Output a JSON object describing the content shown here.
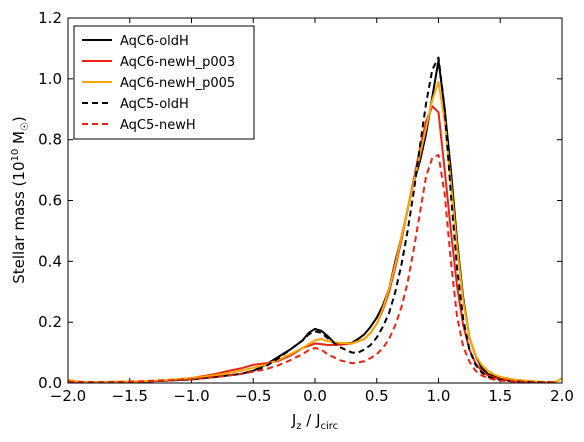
{
  "chart_data": {
    "type": "line",
    "xlabel": {
      "main": "J",
      "sub1": "z",
      "mid": " / J",
      "sub2": "circ"
    },
    "ylabel": {
      "main": "Stellar mass (10",
      "sup": "10",
      "unit": " M",
      "sub": "☉",
      "close": ")"
    },
    "xlim": [
      -2.0,
      2.0
    ],
    "ylim": [
      0.0,
      1.2
    ],
    "xticks": [
      "−2.0",
      "−1.5",
      "−1.0",
      "−0.5",
      "0.0",
      "0.5",
      "1.0",
      "1.5",
      "2.0"
    ],
    "xtick_values": [
      -2.0,
      -1.5,
      -1.0,
      -0.5,
      0.0,
      0.5,
      1.0,
      1.5,
      2.0
    ],
    "yticks": [
      "0.0",
      "0.2",
      "0.4",
      "0.6",
      "0.8",
      "1.0",
      "1.2"
    ],
    "ytick_values": [
      0.0,
      0.2,
      0.4,
      0.6,
      0.8,
      1.0,
      1.2
    ],
    "grid": false,
    "legend_position": "top-left",
    "series": [
      {
        "name": "AqC6-oldH",
        "color": "#000000",
        "dash": "solid",
        "x": [
          -2.0,
          -1.9,
          -1.8,
          -1.6,
          -1.4,
          -1.2,
          -1.0,
          -0.8,
          -0.6,
          -0.5,
          -0.4,
          -0.3,
          -0.2,
          -0.1,
          -0.05,
          0.0,
          0.05,
          0.1,
          0.15,
          0.2,
          0.3,
          0.35,
          0.4,
          0.45,
          0.5,
          0.55,
          0.6,
          0.65,
          0.7,
          0.75,
          0.8,
          0.85,
          0.9,
          0.95,
          1.0,
          1.05,
          1.1,
          1.15,
          1.2,
          1.25,
          1.3,
          1.35,
          1.4,
          1.5,
          1.6,
          1.7,
          1.8,
          1.9,
          1.95
        ],
        "y": [
          0.005,
          0.003,
          0.002,
          0.003,
          0.005,
          0.008,
          0.012,
          0.02,
          0.03,
          0.04,
          0.06,
          0.085,
          0.11,
          0.14,
          0.165,
          0.178,
          0.172,
          0.155,
          0.135,
          0.128,
          0.132,
          0.145,
          0.16,
          0.185,
          0.215,
          0.255,
          0.31,
          0.4,
          0.48,
          0.57,
          0.66,
          0.73,
          0.82,
          0.94,
          1.06,
          0.9,
          0.7,
          0.47,
          0.28,
          0.15,
          0.09,
          0.05,
          0.03,
          0.015,
          0.008,
          0.005,
          0.003,
          0.002,
          0.002
        ]
      },
      {
        "name": "AqC6-newH_p003",
        "color": "#ee2211",
        "dash": "solid",
        "x": [
          -2.0,
          -1.9,
          -1.8,
          -1.6,
          -1.4,
          -1.2,
          -1.0,
          -0.8,
          -0.7,
          -0.6,
          -0.5,
          -0.4,
          -0.3,
          -0.2,
          -0.1,
          0.0,
          0.05,
          0.1,
          0.2,
          0.3,
          0.4,
          0.45,
          0.5,
          0.55,
          0.6,
          0.65,
          0.7,
          0.75,
          0.8,
          0.85,
          0.9,
          0.95,
          1.0,
          1.05,
          1.1,
          1.15,
          1.2,
          1.25,
          1.3,
          1.35,
          1.4,
          1.5,
          1.6,
          1.7,
          1.8,
          1.9,
          1.95
        ],
        "y": [
          0.005,
          0.004,
          0.003,
          0.004,
          0.006,
          0.01,
          0.016,
          0.03,
          0.04,
          0.048,
          0.06,
          0.065,
          0.072,
          0.09,
          0.115,
          0.13,
          0.128,
          0.125,
          0.126,
          0.13,
          0.145,
          0.165,
          0.195,
          0.24,
          0.3,
          0.38,
          0.47,
          0.57,
          0.67,
          0.77,
          0.86,
          0.91,
          0.89,
          0.7,
          0.5,
          0.32,
          0.19,
          0.11,
          0.065,
          0.04,
          0.025,
          0.012,
          0.007,
          0.004,
          0.003,
          0.002,
          0.002
        ]
      },
      {
        "name": "AqC6-newH_p005",
        "color": "#ffa500",
        "dash": "solid",
        "x": [
          -2.0,
          -1.9,
          -1.8,
          -1.6,
          -1.4,
          -1.2,
          -1.0,
          -0.8,
          -0.6,
          -0.5,
          -0.4,
          -0.3,
          -0.2,
          -0.1,
          0.0,
          0.05,
          0.1,
          0.2,
          0.3,
          0.4,
          0.45,
          0.5,
          0.55,
          0.6,
          0.65,
          0.7,
          0.75,
          0.8,
          0.85,
          0.9,
          0.95,
          1.0,
          1.05,
          1.1,
          1.15,
          1.2,
          1.25,
          1.3,
          1.35,
          1.4,
          1.45,
          1.5,
          1.6,
          1.7,
          1.8,
          1.9,
          1.95,
          2.0
        ],
        "y": [
          0.01,
          0.004,
          0.003,
          0.004,
          0.006,
          0.01,
          0.016,
          0.026,
          0.04,
          0.05,
          0.06,
          0.075,
          0.095,
          0.115,
          0.14,
          0.145,
          0.138,
          0.132,
          0.13,
          0.145,
          0.165,
          0.195,
          0.245,
          0.31,
          0.39,
          0.48,
          0.57,
          0.66,
          0.75,
          0.84,
          0.93,
          0.99,
          0.86,
          0.66,
          0.45,
          0.27,
          0.15,
          0.09,
          0.06,
          0.04,
          0.028,
          0.02,
          0.012,
          0.008,
          0.005,
          0.003,
          0.004,
          0.015
        ]
      },
      {
        "name": "AqC5-oldH",
        "color": "#000000",
        "dash": "dashed",
        "x": [
          -2.0,
          -1.9,
          -1.8,
          -1.6,
          -1.4,
          -1.2,
          -1.0,
          -0.8,
          -0.6,
          -0.5,
          -0.4,
          -0.3,
          -0.2,
          -0.1,
          -0.05,
          0.0,
          0.05,
          0.1,
          0.2,
          0.3,
          0.35,
          0.4,
          0.45,
          0.5,
          0.55,
          0.6,
          0.65,
          0.7,
          0.75,
          0.8,
          0.85,
          0.9,
          0.95,
          1.0,
          1.05,
          1.1,
          1.15,
          1.2,
          1.25,
          1.3,
          1.35,
          1.4,
          1.5,
          1.6,
          1.7,
          1.8,
          1.9,
          1.95
        ],
        "y": [
          0.004,
          0.003,
          0.002,
          0.003,
          0.005,
          0.008,
          0.012,
          0.02,
          0.03,
          0.04,
          0.055,
          0.08,
          0.11,
          0.14,
          0.16,
          0.17,
          0.165,
          0.148,
          0.118,
          0.1,
          0.1,
          0.11,
          0.125,
          0.15,
          0.185,
          0.23,
          0.3,
          0.39,
          0.5,
          0.63,
          0.78,
          0.92,
          1.03,
          1.07,
          0.9,
          0.62,
          0.38,
          0.21,
          0.11,
          0.06,
          0.035,
          0.02,
          0.01,
          0.006,
          0.004,
          0.003,
          0.002,
          0.002
        ]
      },
      {
        "name": "AqC5-newH",
        "color": "#ee2211",
        "dash": "dashed",
        "x": [
          -2.0,
          -1.9,
          -1.8,
          -1.6,
          -1.4,
          -1.2,
          -1.0,
          -0.8,
          -0.6,
          -0.5,
          -0.4,
          -0.3,
          -0.2,
          -0.1,
          -0.05,
          0.0,
          0.05,
          0.1,
          0.2,
          0.3,
          0.35,
          0.4,
          0.45,
          0.5,
          0.55,
          0.6,
          0.65,
          0.7,
          0.75,
          0.8,
          0.85,
          0.9,
          0.95,
          1.0,
          1.05,
          1.1,
          1.15,
          1.2,
          1.25,
          1.3,
          1.35,
          1.4,
          1.5,
          1.6,
          1.7,
          1.8,
          1.9,
          1.95
        ],
        "y": [
          0.004,
          0.003,
          0.002,
          0.003,
          0.005,
          0.008,
          0.012,
          0.02,
          0.03,
          0.037,
          0.045,
          0.058,
          0.075,
          0.095,
          0.108,
          0.115,
          0.11,
          0.095,
          0.075,
          0.065,
          0.067,
          0.072,
          0.082,
          0.095,
          0.115,
          0.145,
          0.19,
          0.25,
          0.33,
          0.44,
          0.56,
          0.68,
          0.74,
          0.75,
          0.62,
          0.4,
          0.22,
          0.12,
          0.07,
          0.04,
          0.025,
          0.015,
          0.008,
          0.005,
          0.003,
          0.002,
          0.002,
          0.002
        ]
      }
    ]
  }
}
